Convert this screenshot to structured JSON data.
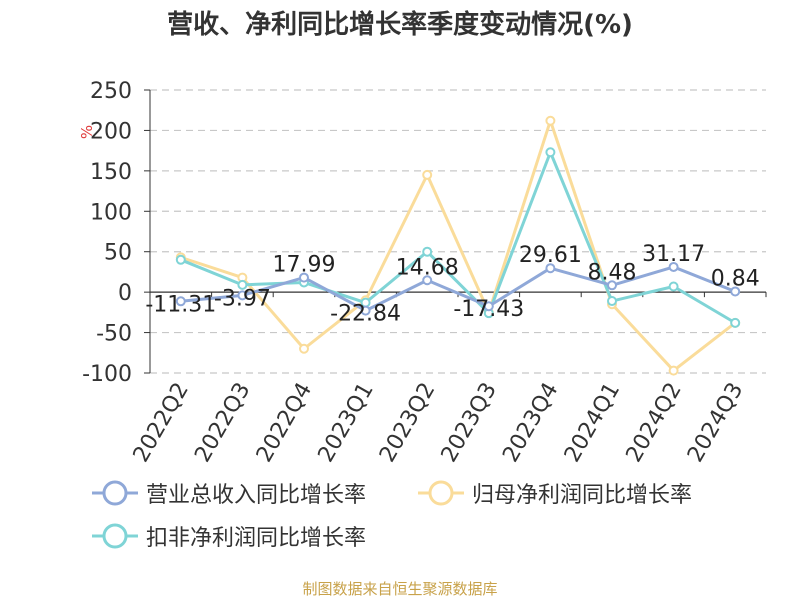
{
  "chart_data": {
    "type": "line",
    "title": "营收、净利同比增长率季度变动情况(%)",
    "ylabel": "%",
    "xlabel": "",
    "categories": [
      "2022Q2",
      "2022Q3",
      "2022Q4",
      "2023Q1",
      "2023Q2",
      "2023Q3",
      "2023Q4",
      "2024Q1",
      "2024Q2",
      "2024Q3"
    ],
    "yticks": [
      250,
      200,
      150,
      100,
      50,
      0,
      -50,
      -100
    ],
    "ylim": [
      -100,
      250
    ],
    "grid": true,
    "legend_position": "bottom",
    "series": [
      {
        "name": "营业总收入同比增长率",
        "color": "#8fa8d8",
        "values": [
          -11.31,
          -3.97,
          17.99,
          -22.84,
          14.68,
          -17.43,
          29.61,
          8.48,
          31.17,
          0.84
        ],
        "labels": [
          "-11.31",
          "-3.97",
          "17.99",
          "-22.84",
          "14.68",
          "-17.43",
          "29.61",
          "8.48",
          "31.17",
          "0.84"
        ]
      },
      {
        "name": "归母净利润同比增长率",
        "color": "#fadc9a",
        "values": [
          43,
          18,
          -70,
          -10,
          145,
          -25,
          212,
          -15,
          -97,
          -38
        ]
      },
      {
        "name": "扣非净利润同比增长率",
        "color": "#7fd4d6",
        "values": [
          40,
          9,
          12,
          -13,
          50,
          -26,
          173,
          -11,
          7,
          -38
        ]
      }
    ]
  },
  "source": "制图数据来自恒生聚源数据库"
}
